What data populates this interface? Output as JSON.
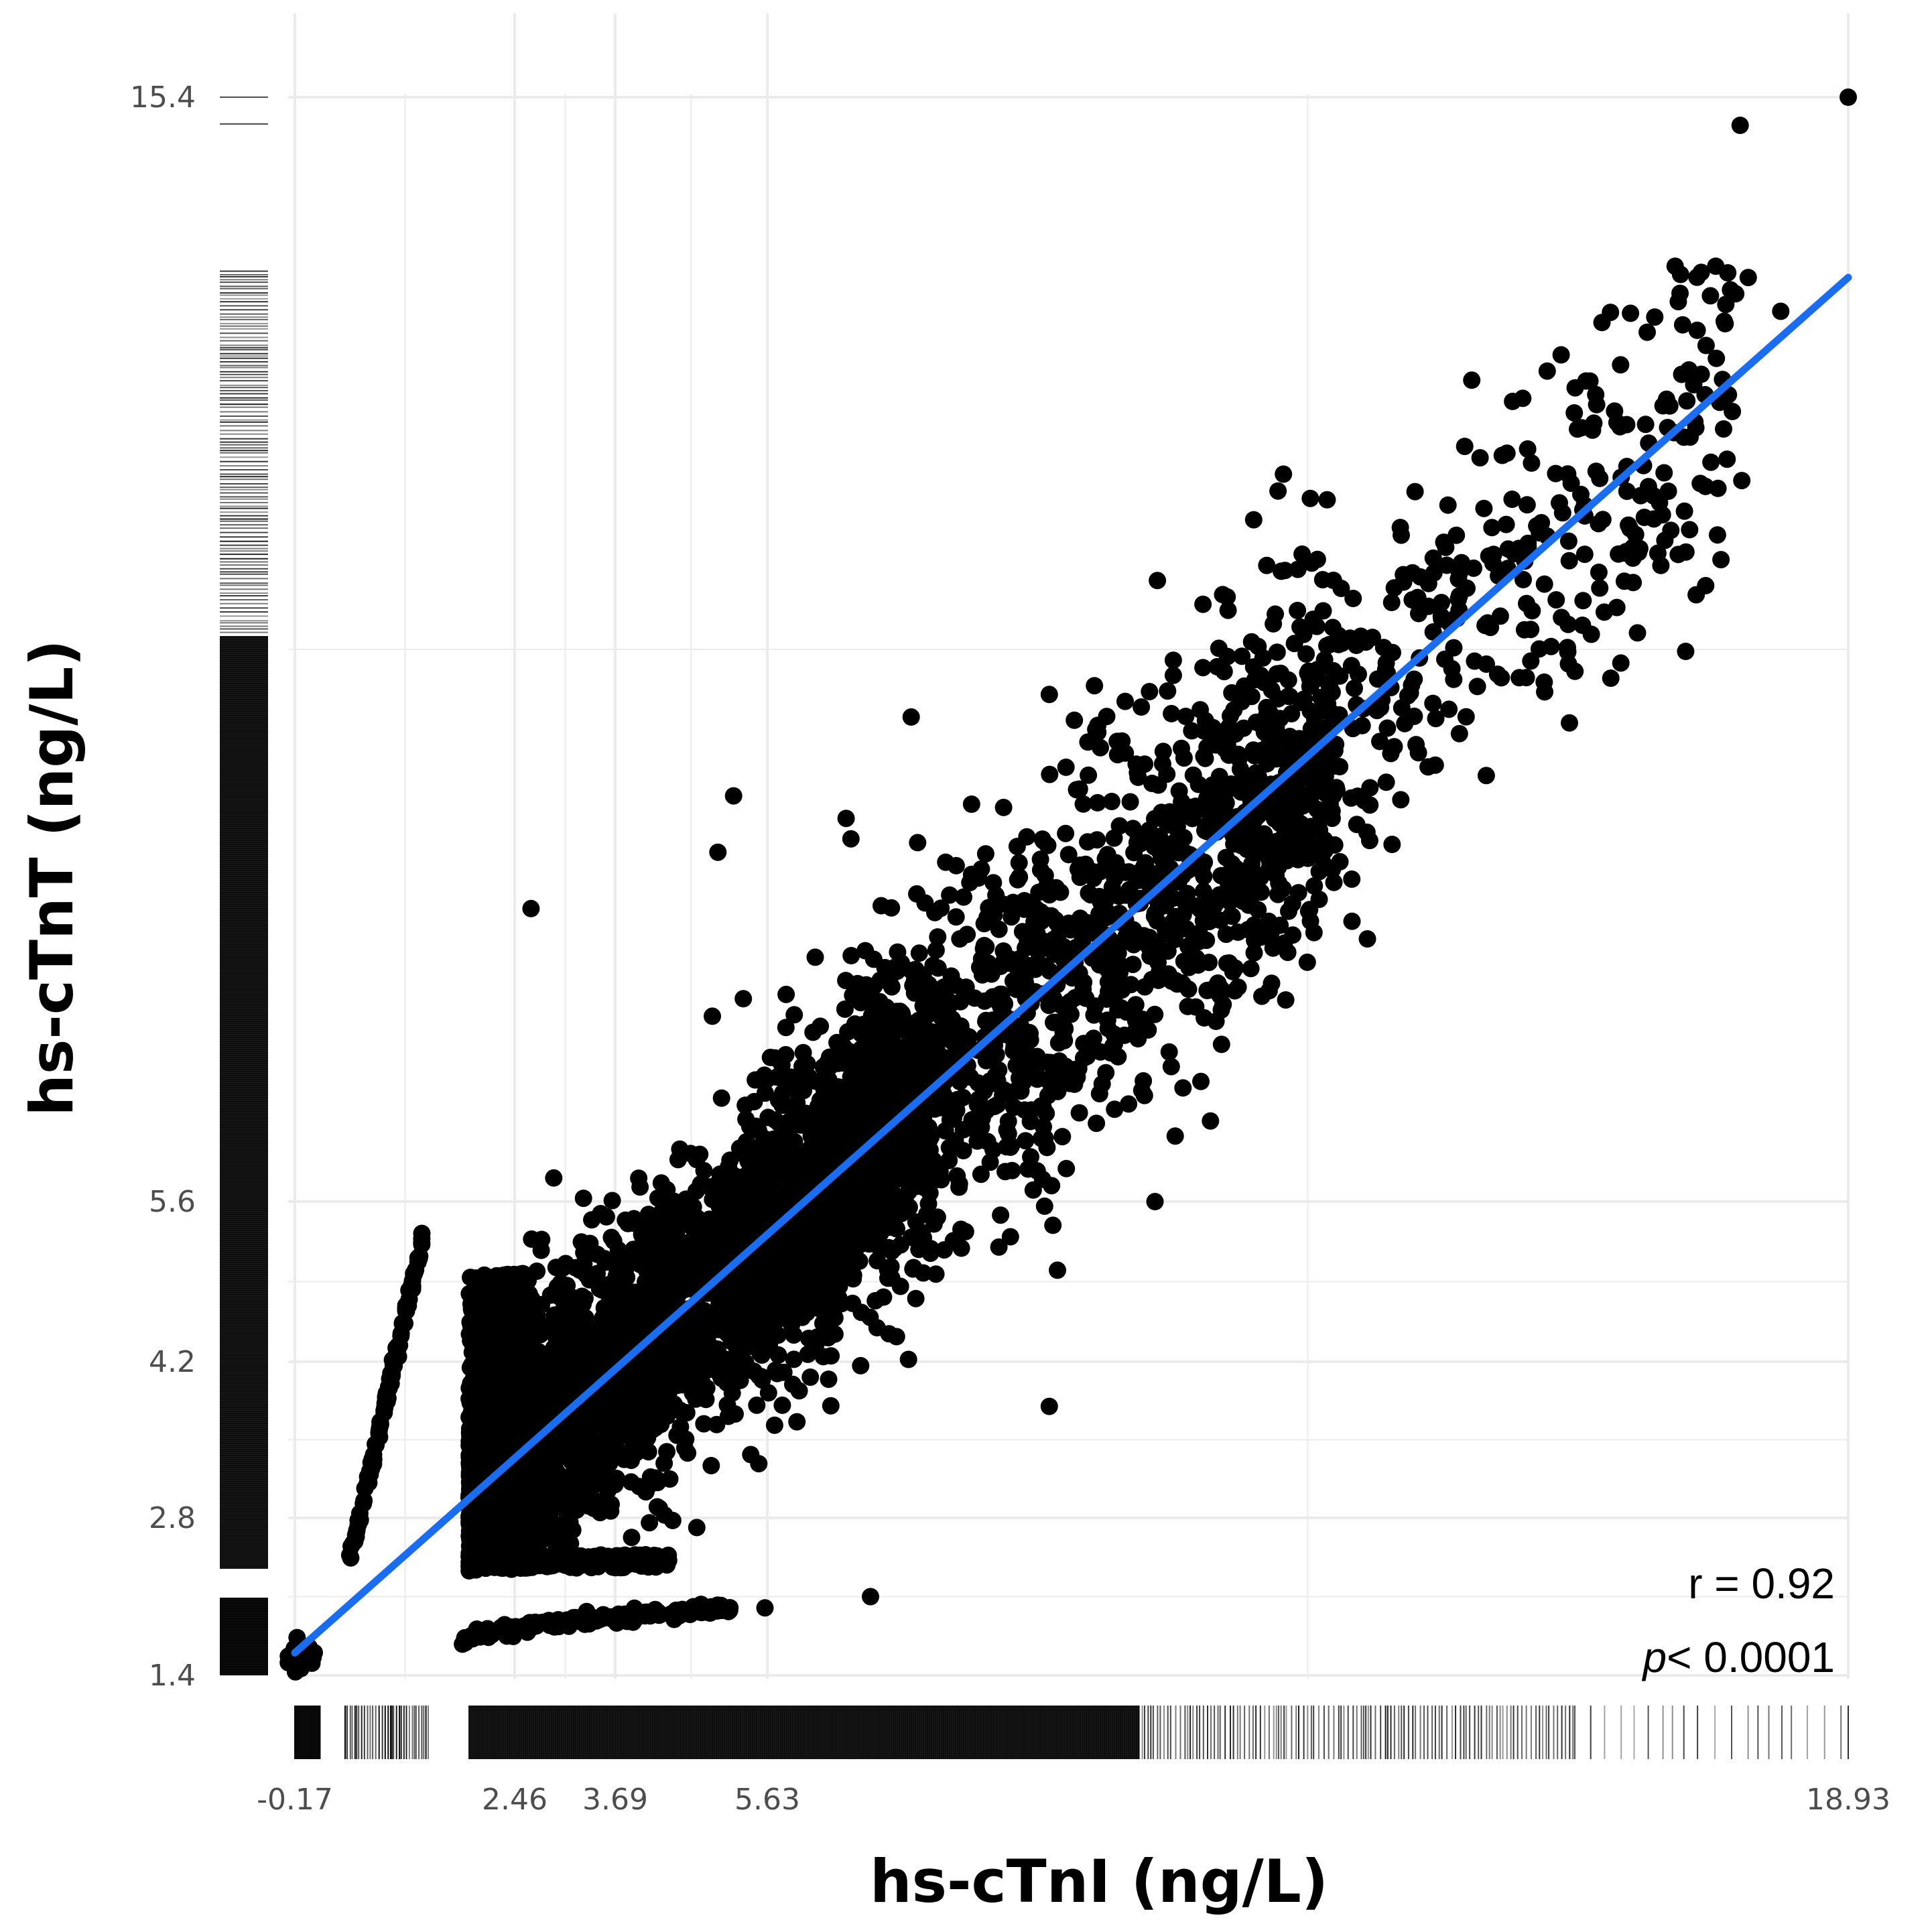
{
  "chart_data": {
    "type": "scatter",
    "xlabel": "hs-cTnI (ng/L)",
    "ylabel": "hs-cTnT (ng/L)",
    "xlim": [
      -0.17,
      18.93
    ],
    "ylim": [
      1.4,
      15.4
    ],
    "x_ticks": [
      "-0.17",
      "2.46",
      "3.69",
      "5.63",
      "18.93"
    ],
    "y_ticks": [
      "1.4",
      "2.8",
      "4.2",
      "5.6",
      "15.4"
    ],
    "grid": true,
    "rug_plots": true,
    "point_color": "#000000",
    "fit_line": {
      "color": "#1a6cf0",
      "x": [
        -0.17,
        18.93
      ],
      "y": [
        1.6,
        13.8
      ]
    },
    "annotations": {
      "r": "r = 0.92",
      "p_symbol": "p",
      "p_value": "< 0.0001"
    },
    "notable_points": [
      {
        "x": 18.93,
        "y": 15.4
      },
      {
        "x": 17.6,
        "y": 15.15
      },
      {
        "x": 16.8,
        "y": 13.9
      },
      {
        "x": 17.3,
        "y": 13.9
      },
      {
        "x": 17.7,
        "y": 13.8
      },
      {
        "x": 18.1,
        "y": 13.5
      },
      {
        "x": 15.9,
        "y": 13.4
      },
      {
        "x": 14.8,
        "y": 12.7
      },
      {
        "x": 14.4,
        "y": 12.2
      },
      {
        "x": 13.6,
        "y": 11.9
      },
      {
        "x": 12.0,
        "y": 11.2
      },
      {
        "x": 12.8,
        "y": 10.6
      },
      {
        "x": 10.99,
        "y": 10.9
      },
      {
        "x": 9.1,
        "y": 10.1
      },
      {
        "x": 7.4,
        "y": 9.9
      },
      {
        "x": 5.2,
        "y": 9.2
      },
      {
        "x": 6.6,
        "y": 9.0
      },
      {
        "x": 5.0,
        "y": 8.7
      },
      {
        "x": 2.66,
        "y": 8.2
      },
      {
        "x": 9.3,
        "y": 6.8
      },
      {
        "x": 10.4,
        "y": 5.6
      },
      {
        "x": 9.2,
        "y": 5.0
      },
      {
        "x": 9.1,
        "y": 3.8
      },
      {
        "x": 5.6,
        "y": 2.0
      },
      {
        "x": 6.9,
        "y": 2.1
      },
      {
        "x": 3.2,
        "y": 1.9
      }
    ]
  }
}
